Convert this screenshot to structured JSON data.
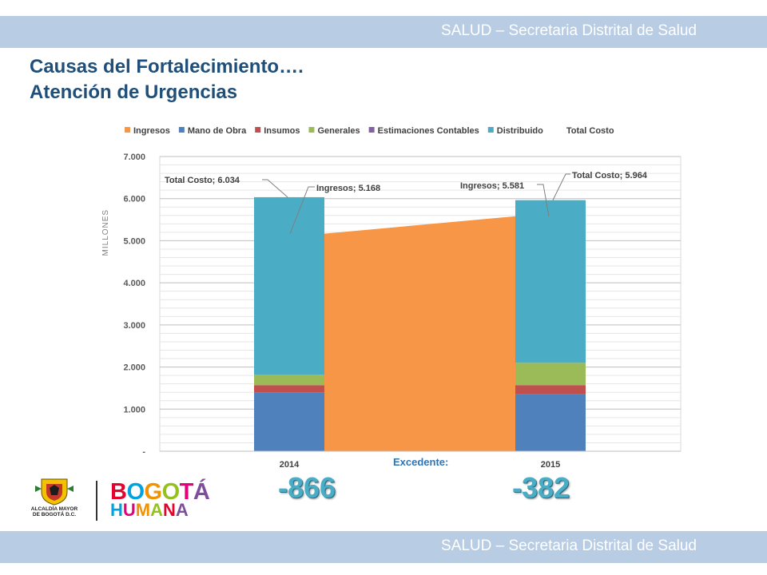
{
  "header": {
    "text": "SALUD – Secretaria Distrital de Salud"
  },
  "footer": {
    "text": "SALUD – Secretaria Distrital de Salud"
  },
  "title": {
    "line1": "Causas del Fortalecimiento….",
    "line2": "Atención de Urgencias"
  },
  "colors": {
    "band": "#b8cce4",
    "title": "#1f4e79",
    "ingresos": "#f79646",
    "mano_de_obra": "#4f81bd",
    "insumos": "#c0504d",
    "generales": "#9bbb59",
    "estimaciones": "#8064a2",
    "distribuido": "#4bacc6",
    "excedente_value": "#4bacc6"
  },
  "chart_data": {
    "type": "bar",
    "stacked": true,
    "categories": [
      "2014",
      "2015"
    ],
    "ylabel": "MILLONES",
    "ylim": [
      0,
      7000
    ],
    "yticks": [
      "-",
      "1.000",
      "2.000",
      "3.000",
      "4.000",
      "5.000",
      "6.000",
      "7.000"
    ],
    "grid": true,
    "legend_position": "top",
    "legend": [
      "Ingresos",
      "Mano de Obra",
      "Insumos",
      "Generales",
      "Estimaciones Contables",
      "Distribuido",
      "Total Costo"
    ],
    "series": [
      {
        "name": "Mano de Obra",
        "values": [
          1400,
          1350
        ],
        "color": "#4f81bd"
      },
      {
        "name": "Insumos",
        "values": [
          170,
          220
        ],
        "color": "#c0504d"
      },
      {
        "name": "Generales",
        "values": [
          250,
          530
        ],
        "color": "#9bbb59"
      },
      {
        "name": "Estimaciones Contables",
        "values": [
          0,
          0
        ],
        "color": "#8064a2"
      },
      {
        "name": "Distribuido",
        "values": [
          4214,
          3864
        ],
        "color": "#4bacc6"
      }
    ],
    "area_series": {
      "name": "Ingresos",
      "values": [
        5168,
        5581
      ],
      "color": "#f79646"
    },
    "total_costo": [
      6034,
      5964
    ],
    "annotations": [
      {
        "category": "2014",
        "text": "Total Costo; 6.034"
      },
      {
        "category": "2014",
        "text": "Ingresos; 5.168"
      },
      {
        "category": "2015",
        "text": "Ingresos; 5.581"
      },
      {
        "category": "2015",
        "text": "Total Costo; 5.964"
      }
    ]
  },
  "excedente": {
    "label": "Excedente:",
    "values": [
      "-866",
      "-382"
    ]
  },
  "logos": {
    "alcaldia_text": "ALCALDÍA MAYOR DE BOGOTÁ D.C.",
    "bogota_letters": [
      "B",
      "O",
      "G",
      "O",
      "T",
      "Á"
    ],
    "bogota_colors": [
      "#e4032e",
      "#00a3e0",
      "#f39200",
      "#95c11f",
      "#e6007e",
      "#7d4e9e"
    ],
    "humana_letters": [
      "H",
      "U",
      "M",
      "A",
      "N",
      "A"
    ],
    "humana_colors": [
      "#00a3e0",
      "#e6007e",
      "#f39200",
      "#95c11f",
      "#e4032e",
      "#7d4e9e"
    ]
  }
}
